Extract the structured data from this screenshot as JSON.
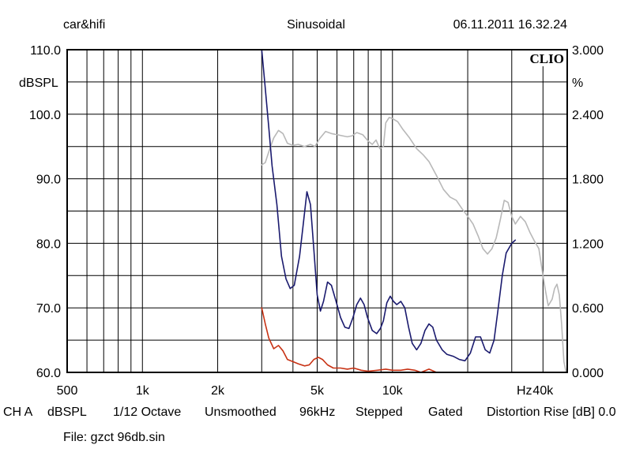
{
  "header": {
    "left": "car&hifi",
    "center": "Sinusoidal",
    "right": "06.11.2011 16.32.24"
  },
  "brand": "CLIO",
  "axes": {
    "left_unit": "dBSPL",
    "right_unit": "%",
    "x_unit": "Hz"
  },
  "info": {
    "channel": "CH A",
    "unit": "dBSPL",
    "resolution": "1/12 Octave",
    "smoothing": "Unsmoothed",
    "rate": "96kHz",
    "mode": "Stepped",
    "gating": "Gated",
    "distortion": "Distortion Rise [dB] 0.0"
  },
  "file": "File: gzct 96db.sin",
  "colors": {
    "grid": "#000000",
    "response": "#1a1a6e",
    "distortion_total": "#b8b8b8",
    "distortion_low": "#c83214"
  },
  "chart_data": {
    "type": "line",
    "x_scale": "log",
    "xlim": [
      500,
      50000
    ],
    "ylim": [
      60,
      110
    ],
    "y2lim": [
      0,
      3
    ],
    "x_ticks": [
      {
        "v": 500,
        "t": "500"
      },
      {
        "v": 1000,
        "t": "1k"
      },
      {
        "v": 2000,
        "t": "2k"
      },
      {
        "v": 5000,
        "t": "5k"
      },
      {
        "v": 10000,
        "t": "10k"
      },
      {
        "v": 40000,
        "t": "40k"
      }
    ],
    "y_ticks": [
      {
        "v": 60,
        "t": "60.0"
      },
      {
        "v": 70,
        "t": "70.0"
      },
      {
        "v": 80,
        "t": "80.0"
      },
      {
        "v": 90,
        "t": "90.0"
      },
      {
        "v": 100,
        "t": "100.0"
      },
      {
        "v": 110,
        "t": "110.0"
      }
    ],
    "y2_ticks": [
      {
        "v": 0,
        "t": "0.000"
      },
      {
        "v": 0.6,
        "t": "0.600"
      },
      {
        "v": 1.2,
        "t": "1.200"
      },
      {
        "v": 1.8,
        "t": "1.800"
      },
      {
        "v": 2.4,
        "t": "2.400"
      },
      {
        "v": 3.0,
        "t": "3.000"
      }
    ],
    "grid": true,
    "series": [
      {
        "axis": "right",
        "color": "#b8b8b8",
        "points": [
          [
            3000,
            1.93
          ],
          [
            3100,
            1.95
          ],
          [
            3200,
            2.05
          ],
          [
            3350,
            2.18
          ],
          [
            3500,
            2.25
          ],
          [
            3650,
            2.22
          ],
          [
            3800,
            2.13
          ],
          [
            4000,
            2.11
          ],
          [
            4200,
            2.12
          ],
          [
            4450,
            2.1
          ],
          [
            4700,
            2.12
          ],
          [
            4900,
            2.1
          ],
          [
            5100,
            2.17
          ],
          [
            5400,
            2.24
          ],
          [
            5700,
            2.22
          ],
          [
            6000,
            2.21
          ],
          [
            6300,
            2.2
          ],
          [
            6600,
            2.19
          ],
          [
            6900,
            2.2
          ],
          [
            7200,
            2.23
          ],
          [
            7600,
            2.21
          ],
          [
            8000,
            2.15
          ],
          [
            8300,
            2.12
          ],
          [
            8600,
            2.16
          ],
          [
            8900,
            2.08
          ],
          [
            9200,
            2.1
          ],
          [
            9400,
            2.32
          ],
          [
            9700,
            2.37
          ],
          [
            10000,
            2.36
          ],
          [
            10500,
            2.33
          ],
          [
            11000,
            2.26
          ],
          [
            11700,
            2.18
          ],
          [
            12500,
            2.08
          ],
          [
            13300,
            2.02
          ],
          [
            14000,
            1.96
          ],
          [
            15000,
            1.83
          ],
          [
            16000,
            1.7
          ],
          [
            17000,
            1.63
          ],
          [
            18000,
            1.6
          ],
          [
            19000,
            1.52
          ],
          [
            20000,
            1.45
          ],
          [
            21000,
            1.38
          ],
          [
            22000,
            1.27
          ],
          [
            23000,
            1.15
          ],
          [
            24000,
            1.1
          ],
          [
            25000,
            1.15
          ],
          [
            26000,
            1.25
          ],
          [
            27000,
            1.42
          ],
          [
            28000,
            1.6
          ],
          [
            29000,
            1.58
          ],
          [
            30000,
            1.45
          ],
          [
            31000,
            1.38
          ],
          [
            32500,
            1.45
          ],
          [
            34000,
            1.4
          ],
          [
            35500,
            1.3
          ],
          [
            37000,
            1.22
          ],
          [
            38500,
            1.15
          ],
          [
            40000,
            0.9
          ],
          [
            41000,
            0.75
          ],
          [
            42000,
            0.62
          ],
          [
            43500,
            0.68
          ],
          [
            44500,
            0.78
          ],
          [
            45500,
            0.82
          ],
          [
            46500,
            0.72
          ],
          [
            47500,
            0.45
          ],
          [
            48500,
            0.1
          ],
          [
            49500,
            0.0
          ]
        ]
      },
      {
        "axis": "left",
        "color": "#1a1a6e",
        "points": [
          [
            3000,
            110.0
          ],
          [
            3100,
            104.0
          ],
          [
            3200,
            98.0
          ],
          [
            3300,
            92.0
          ],
          [
            3450,
            86.0
          ],
          [
            3600,
            78.0
          ],
          [
            3750,
            74.5
          ],
          [
            3900,
            73.0
          ],
          [
            4050,
            73.5
          ],
          [
            4250,
            78.0
          ],
          [
            4400,
            83.0
          ],
          [
            4550,
            88.0
          ],
          [
            4700,
            86.0
          ],
          [
            4850,
            79.0
          ],
          [
            5000,
            72.0
          ],
          [
            5150,
            69.5
          ],
          [
            5300,
            71.0
          ],
          [
            5500,
            74.0
          ],
          [
            5700,
            73.5
          ],
          [
            5950,
            71.0
          ],
          [
            6200,
            68.5
          ],
          [
            6450,
            67.0
          ],
          [
            6700,
            66.8
          ],
          [
            6950,
            68.5
          ],
          [
            7200,
            70.5
          ],
          [
            7450,
            71.5
          ],
          [
            7700,
            70.5
          ],
          [
            7950,
            68.5
          ],
          [
            8300,
            66.5
          ],
          [
            8650,
            66.0
          ],
          [
            8950,
            66.8
          ],
          [
            9200,
            68.0
          ],
          [
            9500,
            70.8
          ],
          [
            9800,
            71.8
          ],
          [
            10100,
            71.0
          ],
          [
            10400,
            70.5
          ],
          [
            10800,
            71.0
          ],
          [
            11200,
            70.0
          ],
          [
            11600,
            67.0
          ],
          [
            12000,
            64.5
          ],
          [
            12500,
            63.5
          ],
          [
            13000,
            64.5
          ],
          [
            13500,
            66.5
          ],
          [
            14000,
            67.5
          ],
          [
            14500,
            67.0
          ],
          [
            15000,
            65.0
          ],
          [
            15800,
            63.5
          ],
          [
            16500,
            62.8
          ],
          [
            17500,
            62.5
          ],
          [
            18500,
            62.0
          ],
          [
            19500,
            61.8
          ],
          [
            20500,
            63.0
          ],
          [
            21500,
            65.5
          ],
          [
            22500,
            65.5
          ],
          [
            23500,
            63.5
          ],
          [
            24500,
            63.0
          ],
          [
            25500,
            65.0
          ],
          [
            26500,
            70.0
          ],
          [
            27500,
            75.0
          ],
          [
            28500,
            78.5
          ],
          [
            30000,
            80.0
          ],
          [
            31000,
            80.5
          ]
        ]
      },
      {
        "axis": "right",
        "color": "#c83214",
        "points": [
          [
            3000,
            0.6
          ],
          [
            3100,
            0.45
          ],
          [
            3200,
            0.32
          ],
          [
            3350,
            0.22
          ],
          [
            3500,
            0.25
          ],
          [
            3650,
            0.2
          ],
          [
            3800,
            0.12
          ],
          [
            4000,
            0.1
          ],
          [
            4200,
            0.08
          ],
          [
            4450,
            0.06
          ],
          [
            4650,
            0.07
          ],
          [
            4850,
            0.12
          ],
          [
            5050,
            0.14
          ],
          [
            5250,
            0.12
          ],
          [
            5500,
            0.07
          ],
          [
            5800,
            0.04
          ],
          [
            6200,
            0.04
          ],
          [
            6600,
            0.03
          ],
          [
            7000,
            0.04
          ],
          [
            7500,
            0.02
          ],
          [
            8000,
            0.01
          ],
          [
            8700,
            0.02
          ],
          [
            9400,
            0.03
          ],
          [
            10000,
            0.02
          ],
          [
            10800,
            0.02
          ],
          [
            11500,
            0.03
          ],
          [
            12300,
            0.02
          ],
          [
            13000,
            0.0
          ],
          [
            14000,
            0.03
          ],
          [
            15000,
            0.0
          ]
        ]
      }
    ]
  }
}
